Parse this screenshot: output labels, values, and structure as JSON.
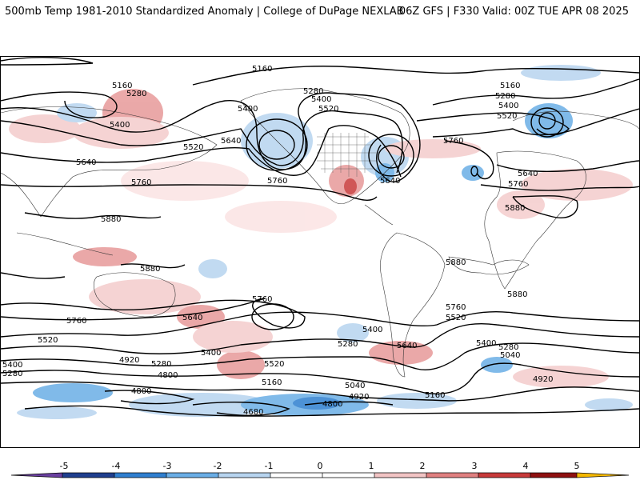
{
  "header": {
    "title_left": "500mb Temp 1981-2010 Standardized Anomaly | College of DuPage NEXLAB",
    "title_right": "06Z GFS | F330 Valid: 00Z TUE APR 08 2025"
  },
  "contour_labels": [
    "5160",
    "5280",
    "5400",
    "5520",
    "5640",
    "5760",
    "5880",
    "5040",
    "4920",
    "4800",
    "4680"
  ],
  "colorbar": {
    "ticks": [
      "-5",
      "-4",
      "-3",
      "-2",
      "-1",
      "0",
      "1",
      "2",
      "3",
      "4",
      "5"
    ],
    "colors": [
      "#6a3fa0",
      "#1f3f8f",
      "#2f7fd0",
      "#6aaee6",
      "#b7d4ef",
      "#ffffff",
      "#ffffff",
      "#f2c4c4",
      "#e08080",
      "#c83a3a",
      "#8f1010",
      "#f5b800"
    ]
  }
}
